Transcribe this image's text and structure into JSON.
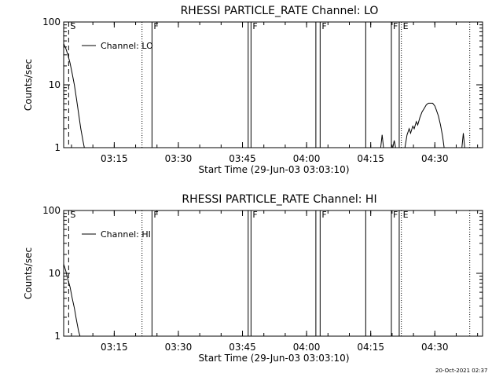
{
  "footer_timestamp": "20-Oct-2021 02:37",
  "chart_data": [
    {
      "type": "line",
      "title": "RHESSI PARTICLE_RATE Channel: LO",
      "xlabel": "Start Time (29-Jun-03 03:03:10)",
      "ylabel": "Counts/sec",
      "y_scale": "log",
      "ylim": [
        1,
        100
      ],
      "xlim": [
        "03:03:10",
        "04:41:10"
      ],
      "x_ticks": [
        "03:15",
        "03:30",
        "03:45",
        "04:00",
        "04:15",
        "04:30"
      ],
      "y_ticks": [
        "1",
        "10",
        "100"
      ],
      "legend": {
        "placement": "top-left",
        "entries": [
          "Channel: LO"
        ]
      },
      "flag_markers": [
        {
          "label": "S",
          "time": "03:04:20",
          "style": "dashed"
        },
        {
          "label": "",
          "time": "03:21:30",
          "style": "dotted"
        },
        {
          "label": "F",
          "time": "03:23:50",
          "style": "solid"
        },
        {
          "label": "",
          "time": "03:46:20",
          "style": "solid"
        },
        {
          "label": "F",
          "time": "03:47:00",
          "style": "solid"
        },
        {
          "label": "",
          "time": "04:02:10",
          "style": "solid"
        },
        {
          "label": "F",
          "time": "04:03:10",
          "style": "solid"
        },
        {
          "label": "",
          "time": "04:13:50",
          "style": "solid"
        },
        {
          "label": "F",
          "time": "04:19:50",
          "style": "solid"
        },
        {
          "label": "",
          "time": "04:21:40",
          "style": "solid"
        },
        {
          "label": "E",
          "time": "04:22:10",
          "style": "dotted"
        },
        {
          "label": "",
          "time": "04:38:10",
          "style": "dotted"
        }
      ],
      "series": [
        {
          "name": "Channel: LO",
          "segments": [
            [
              [
                "03:03:10",
                45
              ],
              [
                "03:03:40",
                38
              ],
              [
                "03:04:10",
                30
              ],
              [
                "03:04:40",
                22
              ],
              [
                "03:05:10",
                15
              ],
              [
                "03:05:40",
                10
              ],
              [
                "03:06:10",
                6
              ],
              [
                "03:06:40",
                3.5
              ],
              [
                "03:07:10",
                2
              ],
              [
                "03:07:40",
                1.3
              ],
              [
                "03:08:00",
                1
              ]
            ],
            [
              [
                "04:17:20",
                1
              ],
              [
                "04:17:40",
                1.6
              ],
              [
                "04:18:00",
                1
              ]
            ],
            [
              [
                "04:20:10",
                1
              ],
              [
                "04:20:30",
                1.3
              ],
              [
                "04:20:50",
                1
              ]
            ],
            [
              [
                "04:23:00",
                1
              ],
              [
                "04:23:30",
                1.6
              ],
              [
                "04:24:00",
                2
              ],
              [
                "04:24:20",
                1.7
              ],
              [
                "04:24:50",
                2.2
              ],
              [
                "04:25:10",
                2.0
              ],
              [
                "04:25:40",
                2.6
              ],
              [
                "04:26:00",
                2.3
              ],
              [
                "04:26:30",
                3.0
              ],
              [
                "04:27:00",
                3.7
              ],
              [
                "04:27:30",
                4.2
              ],
              [
                "04:28:00",
                4.8
              ],
              [
                "04:28:30",
                5.1
              ],
              [
                "04:29:00",
                5.1
              ],
              [
                "04:29:30",
                5.1
              ],
              [
                "04:30:00",
                4.6
              ],
              [
                "04:30:20",
                4.0
              ],
              [
                "04:30:50",
                3.2
              ],
              [
                "04:31:20",
                2.3
              ],
              [
                "04:31:50",
                1.5
              ],
              [
                "04:32:10",
                1.0
              ]
            ],
            [
              [
                "04:36:20",
                1
              ],
              [
                "04:36:40",
                1.7
              ],
              [
                "04:37:00",
                1
              ]
            ]
          ]
        }
      ]
    },
    {
      "type": "line",
      "title": "RHESSI PARTICLE_RATE Channel: HI",
      "xlabel": "Start Time (29-Jun-03 03:03:10)",
      "ylabel": "Counts/sec",
      "y_scale": "log",
      "ylim": [
        1,
        100
      ],
      "xlim": [
        "03:03:10",
        "04:41:10"
      ],
      "x_ticks": [
        "03:15",
        "03:30",
        "03:45",
        "04:00",
        "04:15",
        "04:30"
      ],
      "y_ticks": [
        "1",
        "10",
        "100"
      ],
      "legend": {
        "placement": "top-left",
        "entries": [
          "Channel: HI"
        ]
      },
      "flag_markers": [
        {
          "label": "S",
          "time": "03:04:20",
          "style": "dashed"
        },
        {
          "label": "",
          "time": "03:21:30",
          "style": "dotted"
        },
        {
          "label": "F",
          "time": "03:23:50",
          "style": "solid"
        },
        {
          "label": "",
          "time": "03:46:20",
          "style": "solid"
        },
        {
          "label": "F",
          "time": "03:47:00",
          "style": "solid"
        },
        {
          "label": "",
          "time": "04:02:10",
          "style": "solid"
        },
        {
          "label": "F",
          "time": "04:03:10",
          "style": "solid"
        },
        {
          "label": "",
          "time": "04:13:50",
          "style": "solid"
        },
        {
          "label": "F",
          "time": "04:19:50",
          "style": "solid"
        },
        {
          "label": "",
          "time": "04:21:40",
          "style": "solid"
        },
        {
          "label": "E",
          "time": "04:22:10",
          "style": "dotted"
        },
        {
          "label": "",
          "time": "04:38:10",
          "style": "dotted"
        }
      ],
      "series": [
        {
          "name": "Channel: HI",
          "segments": [
            [
              [
                "03:03:10",
                14
              ],
              [
                "03:03:40",
                11
              ],
              [
                "03:04:10",
                8
              ],
              [
                "03:04:40",
                6
              ],
              [
                "03:05:10",
                4
              ],
              [
                "03:05:40",
                2.8
              ],
              [
                "03:06:10",
                1.8
              ],
              [
                "03:06:40",
                1.2
              ],
              [
                "03:07:00",
                1
              ]
            ]
          ]
        }
      ]
    }
  ]
}
